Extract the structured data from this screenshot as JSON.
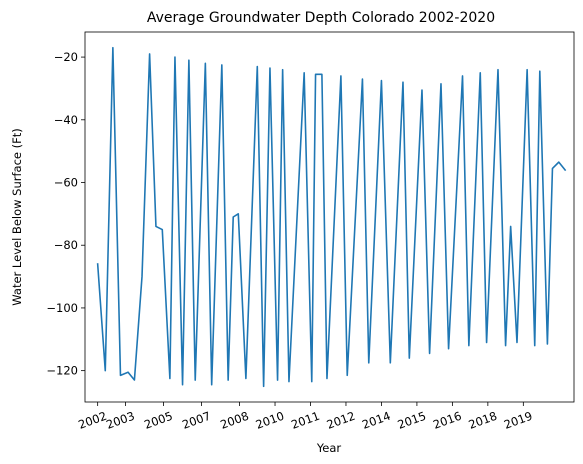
{
  "chart_data": {
    "type": "line",
    "title": "Average Groundwater Depth Colorado 2002-2020",
    "xlabel": "Year",
    "ylabel": "Water Level Below Surface (Ft)",
    "xlim": [
      2001.5,
      2020.8
    ],
    "ylim": [
      -130,
      -12
    ],
    "xticks": [
      2002.0,
      2003.1,
      2004.6,
      2006.1,
      2007.6,
      2009.0,
      2010.4,
      2011.8,
      2013.2,
      2014.6,
      2016.0,
      2017.4,
      2018.8
    ],
    "xtick_labels": [
      "2002",
      "2003",
      "2005",
      "2007",
      "2008",
      "2010",
      "2011",
      "2012",
      "2014",
      "2015",
      "2016",
      "2018",
      "2019"
    ],
    "xtick_rotation": 20,
    "yticks": [
      -120,
      -100,
      -80,
      -60,
      -40,
      -20
    ],
    "grid": false,
    "color": "#1f77b4",
    "series": [
      {
        "values": [
          [
            2002.0,
            -86
          ],
          [
            2002.3,
            -120
          ],
          [
            2002.6,
            -17
          ],
          [
            2002.9,
            -121.5
          ],
          [
            2003.2,
            -120.5
          ],
          [
            2003.45,
            -123
          ],
          [
            2003.75,
            -90
          ],
          [
            2004.05,
            -19
          ],
          [
            2004.3,
            -74
          ],
          [
            2004.55,
            -75
          ],
          [
            2004.85,
            -122.5
          ],
          [
            2005.05,
            -20
          ],
          [
            2005.35,
            -124.5
          ],
          [
            2005.6,
            -21
          ],
          [
            2005.85,
            -123
          ],
          [
            2006.25,
            -22
          ],
          [
            2006.5,
            -124.5
          ],
          [
            2006.9,
            -22.5
          ],
          [
            2007.15,
            -123
          ],
          [
            2007.35,
            -71
          ],
          [
            2007.55,
            -70
          ],
          [
            2007.85,
            -122.5
          ],
          [
            2008.3,
            -23
          ],
          [
            2008.55,
            -125
          ],
          [
            2008.8,
            -23.5
          ],
          [
            2009.1,
            -123
          ],
          [
            2009.3,
            -24
          ],
          [
            2009.55,
            -123.5
          ],
          [
            2010.15,
            -25
          ],
          [
            2010.45,
            -123.5
          ],
          [
            2010.6,
            -25.5
          ],
          [
            2010.85,
            -25.5
          ],
          [
            2011.05,
            -122.5
          ],
          [
            2011.6,
            -26
          ],
          [
            2011.85,
            -121.5
          ],
          [
            2012.45,
            -27
          ],
          [
            2012.7,
            -117.5
          ],
          [
            2013.2,
            -27.5
          ],
          [
            2013.55,
            -117.5
          ],
          [
            2014.05,
            -28
          ],
          [
            2014.3,
            -116
          ],
          [
            2014.8,
            -30.5
          ],
          [
            2015.1,
            -114.5
          ],
          [
            2015.55,
            -28.5
          ],
          [
            2015.85,
            -113
          ],
          [
            2016.4,
            -26
          ],
          [
            2016.65,
            -112
          ],
          [
            2017.1,
            -25
          ],
          [
            2017.35,
            -111
          ],
          [
            2017.8,
            -24
          ],
          [
            2018.1,
            -112
          ],
          [
            2018.3,
            -74
          ],
          [
            2018.55,
            -111
          ],
          [
            2018.95,
            -24
          ],
          [
            2019.25,
            -112
          ],
          [
            2019.45,
            -24.5
          ],
          [
            2019.75,
            -111.5
          ],
          [
            2019.95,
            -55.5
          ],
          [
            2020.2,
            -53.5
          ],
          [
            2020.45,
            -56
          ]
        ]
      }
    ]
  }
}
